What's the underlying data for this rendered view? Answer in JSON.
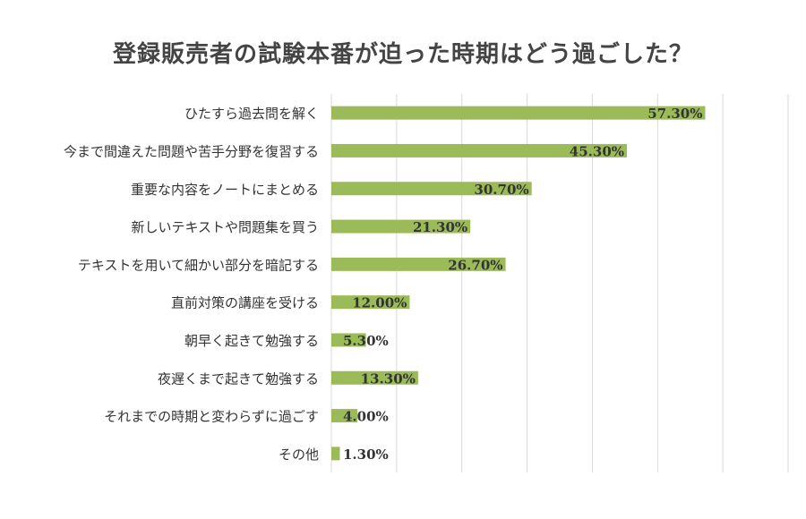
{
  "chart_data": {
    "type": "bar",
    "orientation": "horizontal",
    "title": "登録販売者の試験本番が迫った時期はどう過ごした？",
    "categories": [
      "ひたすら過去問を解く",
      "今まで間違えた問題や苦手分野を復習する",
      "重要な内容をノートにまとめる",
      "新しいテキストや問題集を買う",
      "テキストを用いて細かい部分を暗記する",
      "直前対策の講座を受ける",
      "朝早く起きて勉強する",
      "夜遅くまで起きて勉強する",
      "それまでの時期と変わらずに過ごす",
      "その他"
    ],
    "values": [
      57.3,
      45.3,
      30.7,
      21.3,
      26.7,
      12.0,
      5.3,
      13.3,
      4.0,
      1.3
    ],
    "data_labels": [
      "57.30%",
      "45.30%",
      "30.70%",
      "21.30%",
      "26.70%",
      "12.00%",
      "5.30%",
      "13.30%",
      "4.00%",
      "1.30%"
    ],
    "xlim": [
      0,
      70
    ],
    "grid": true,
    "bar_color": "#9bbb59",
    "grid_color": "#d9d9d9",
    "title_color": "#444444",
    "label_color": "#333333"
  }
}
